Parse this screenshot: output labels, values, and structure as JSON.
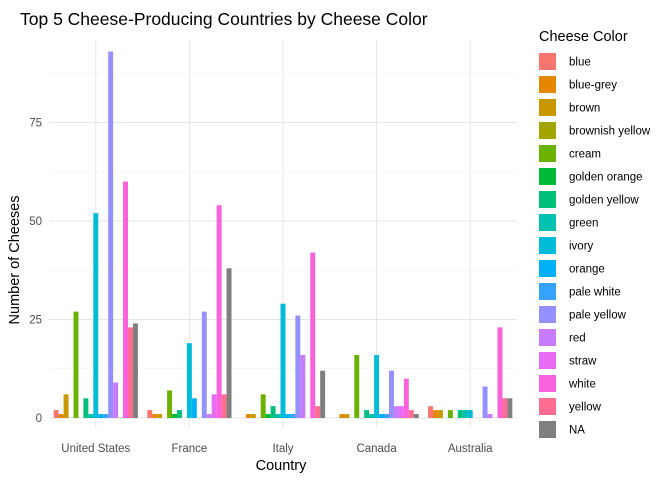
{
  "chart_data": {
    "type": "bar",
    "title": "Top 5 Cheese-Producing Countries by Cheese Color",
    "xlabel": "Country",
    "ylabel": "Number of Cheeses",
    "ylim": [
      0,
      97
    ],
    "yticks": [
      0,
      25,
      50,
      75
    ],
    "grid": true,
    "legend_title": "Cheese Color",
    "legend_position": "right",
    "categories": [
      "United States",
      "France",
      "Italy",
      "Canada",
      "Australia"
    ],
    "series": [
      {
        "name": "blue",
        "color": "#F8766D",
        "values": [
          2,
          2,
          0,
          0,
          3
        ]
      },
      {
        "name": "blue-grey",
        "color": "#E58700",
        "values": [
          1,
          1,
          1,
          1,
          2
        ]
      },
      {
        "name": "brown",
        "color": "#C99800",
        "values": [
          6,
          1,
          1,
          1,
          2
        ]
      },
      {
        "name": "brownish yellow",
        "color": "#A3A500",
        "values": [
          0,
          0,
          0,
          0,
          0
        ]
      },
      {
        "name": "cream",
        "color": "#6BB100",
        "values": [
          27,
          7,
          6,
          16,
          2
        ]
      },
      {
        "name": "golden orange",
        "color": "#00BA38",
        "values": [
          0,
          1,
          1,
          0,
          0
        ]
      },
      {
        "name": "golden yellow",
        "color": "#00BF7D",
        "values": [
          5,
          2,
          3,
          2,
          2
        ]
      },
      {
        "name": "green",
        "color": "#00C0AF",
        "values": [
          1,
          0,
          1,
          1,
          2
        ]
      },
      {
        "name": "ivory",
        "color": "#00BCD8",
        "values": [
          52,
          19,
          29,
          16,
          2
        ]
      },
      {
        "name": "orange",
        "color": "#00B0F6",
        "values": [
          1,
          5,
          1,
          1,
          0
        ]
      },
      {
        "name": "pale white",
        "color": "#35A2FF",
        "values": [
          1,
          0,
          1,
          1,
          0
        ]
      },
      {
        "name": "pale yellow",
        "color": "#9590FF",
        "values": [
          93,
          27,
          26,
          12,
          8
        ]
      },
      {
        "name": "red",
        "color": "#C77CFF",
        "values": [
          9,
          1,
          16,
          3,
          1
        ]
      },
      {
        "name": "straw",
        "color": "#E76BF3",
        "values": [
          0,
          6,
          0,
          3,
          0
        ]
      },
      {
        "name": "white",
        "color": "#FA62DB",
        "values": [
          60,
          54,
          42,
          10,
          23
        ]
      },
      {
        "name": "yellow",
        "color": "#FF6C91",
        "values": [
          23,
          6,
          3,
          2,
          5
        ]
      },
      {
        "name": "NA",
        "color": "#7F7F7F",
        "values": [
          24,
          38,
          12,
          1,
          5
        ]
      }
    ]
  }
}
